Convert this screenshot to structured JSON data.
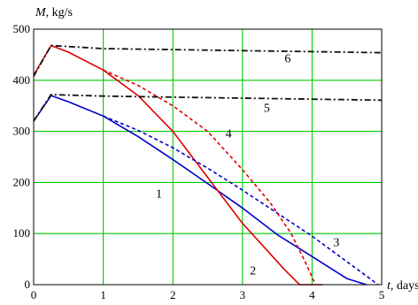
{
  "chart_data": {
    "type": "line",
    "xlabel_var": "t",
    "xlabel_unit": ", days",
    "ylabel_var": "M",
    "ylabel_unit": ", kg/s",
    "xlim": [
      0,
      5
    ],
    "ylim": [
      0,
      500
    ],
    "xticks": [
      0,
      1,
      2,
      3,
      4,
      5
    ],
    "yticks": [
      0,
      100,
      200,
      300,
      400,
      500
    ],
    "grid": true,
    "grid_color": "#00cc00",
    "series": [
      {
        "name": "1",
        "color": "#0000cc",
        "dash": "solid",
        "x": [
          0,
          0.25,
          0.5,
          1.0,
          1.5,
          2.0,
          2.5,
          3.0,
          3.5,
          4.0,
          4.5,
          4.78
        ],
        "y": [
          320,
          370,
          358,
          330,
          290,
          245,
          198,
          150,
          98,
          55,
          12,
          0
        ]
      },
      {
        "name": "2",
        "color": "#dd0000",
        "dash": "solid",
        "x": [
          0,
          0.25,
          0.5,
          1.0,
          1.5,
          2.0,
          2.5,
          3.0,
          3.3,
          3.6,
          3.82,
          4.15
        ],
        "y": [
          410,
          468,
          455,
          420,
          370,
          300,
          210,
          120,
          75,
          30,
          0,
          0
        ]
      },
      {
        "name": "3",
        "color": "#0000cc",
        "dash": "dotted",
        "x": [
          1.0,
          1.5,
          2.0,
          2.5,
          3.0,
          3.5,
          4.0,
          4.5,
          4.95
        ],
        "y": [
          330,
          302,
          268,
          228,
          185,
          140,
          95,
          45,
          0
        ]
      },
      {
        "name": "4",
        "color": "#dd0000",
        "dash": "dotted",
        "x": [
          1.0,
          1.5,
          2.0,
          2.5,
          3.0,
          3.4,
          3.7,
          3.9,
          4.05
        ],
        "y": [
          420,
          390,
          350,
          300,
          225,
          160,
          100,
          45,
          0
        ]
      },
      {
        "name": "5",
        "color": "#111111",
        "dash": "dashdot",
        "x": [
          0,
          0.25,
          1.0,
          2.0,
          3.0,
          4.0,
          5.0
        ],
        "y": [
          320,
          372,
          369,
          367,
          365,
          363,
          361
        ]
      },
      {
        "name": "6",
        "color": "#111111",
        "dash": "dashdot",
        "x": [
          0,
          0.25,
          1.0,
          2.0,
          3.0,
          4.0,
          5.0
        ],
        "y": [
          408,
          468,
          462,
          460,
          458,
          456,
          454
        ]
      }
    ],
    "curve_labels": [
      {
        "text": "1",
        "x": 1.8,
        "y": 170
      },
      {
        "text": "2",
        "x": 3.15,
        "y": 20
      },
      {
        "text": "3",
        "x": 4.35,
        "y": 75
      },
      {
        "text": "4",
        "x": 2.8,
        "y": 288
      },
      {
        "text": "5",
        "x": 3.35,
        "y": 338
      },
      {
        "text": "6",
        "x": 3.65,
        "y": 435
      }
    ]
  }
}
